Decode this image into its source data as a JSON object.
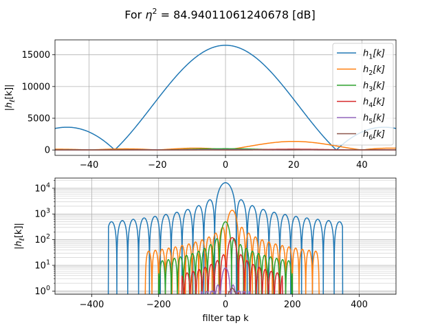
{
  "figure": {
    "title": "For η² = 84.94011061240678 [dB]",
    "title_prefix": "For ",
    "title_var": "η",
    "title_sup": "2",
    "title_suffix": " = 84.94011061240678 [dB]"
  },
  "chart_data": [
    {
      "type": "line",
      "panel": "top",
      "xlabel": "",
      "ylabel": "|hℓ[k]|",
      "xlim": [
        -50,
        50
      ],
      "ylim": [
        -850,
        17350
      ],
      "yscale": "linear",
      "grid": true,
      "legend_position": "top-right",
      "xticks": [
        -40,
        -20,
        0,
        20,
        40
      ],
      "xtick_labels": [
        "−40",
        "−20",
        "0",
        "20",
        "40"
      ],
      "yticks": [
        0,
        5000,
        10000,
        15000
      ],
      "ytick_labels": [
        "0",
        "5000",
        "10000",
        "15000"
      ],
      "series_model": "each series is approximated by |A·sinc((k−c)/w)|; sampled at integer taps",
      "series": [
        {
          "name": "h1[k]",
          "label_base": "h",
          "label_sub": "1",
          "label_arg": "[k]",
          "color": "#1f77b4",
          "amplitude": 16500,
          "center": 0,
          "sinc_width": 32.5
        },
        {
          "name": "h2[k]",
          "label_base": "h",
          "label_sub": "2",
          "label_arg": "[k]",
          "color": "#ff7f0e",
          "amplitude": 1350,
          "center": 20,
          "sinc_width": 20
        },
        {
          "name": "h3[k]",
          "label_base": "h",
          "label_sub": "3",
          "label_arg": "[k]",
          "color": "#2ca02c",
          "amplitude": 200,
          "center": 0,
          "sinc_width": 18
        },
        {
          "name": "h4[k]",
          "label_base": "h",
          "label_sub": "4",
          "label_arg": "[k]",
          "color": "#d62728",
          "amplitude": 120,
          "center": 20,
          "sinc_width": 18
        },
        {
          "name": "h5[k]",
          "label_base": "h",
          "label_sub": "5",
          "label_arg": "[k]",
          "color": "#9467bd",
          "amplitude": 60,
          "center": 0,
          "sinc_width": 16
        },
        {
          "name": "h6[k]",
          "label_base": "h",
          "label_sub": "6",
          "label_arg": "[k]",
          "color": "#8c564b",
          "amplitude": 30,
          "center": 20,
          "sinc_width": 16
        }
      ]
    },
    {
      "type": "line",
      "panel": "bottom",
      "xlabel": "filter tap k",
      "ylabel": "|hℓ[k]|",
      "xlim": [
        -510,
        510
      ],
      "ylim": [
        0.75,
        25000
      ],
      "yscale": "log",
      "grid": true,
      "xticks": [
        -400,
        -200,
        0,
        200,
        400
      ],
      "xtick_labels": [
        "−400",
        "−200",
        "0",
        "200",
        "400"
      ],
      "yticks": [
        1,
        10,
        100,
        1000,
        10000
      ],
      "ytick_exponents": [
        "0",
        "1",
        "2",
        "3",
        "4"
      ],
      "series": [
        {
          "name": "h1[k]",
          "color": "#1f77b4",
          "peak": 16500,
          "lobe_width": 32.5,
          "support": 350,
          "center": 0
        },
        {
          "name": "h2[k]",
          "color": "#ff7f0e",
          "peak": 1400,
          "lobe_width": 20,
          "support": 260,
          "center": 20
        },
        {
          "name": "h3[k]",
          "color": "#2ca02c",
          "peak": 500,
          "lobe_width": 18,
          "support": 200,
          "center": 0
        },
        {
          "name": "h4[k]",
          "color": "#d62728",
          "peak": 120,
          "lobe_width": 18,
          "support": 150,
          "center": 20
        },
        {
          "name": "h5[k]",
          "color": "#9467bd",
          "peak": 8,
          "lobe_width": 16,
          "support": 100,
          "center": 0
        },
        {
          "name": "h6[k]",
          "color": "#8c564b",
          "peak": 1.3,
          "lobe_width": 16,
          "support": 40,
          "center": 20
        }
      ]
    }
  ]
}
